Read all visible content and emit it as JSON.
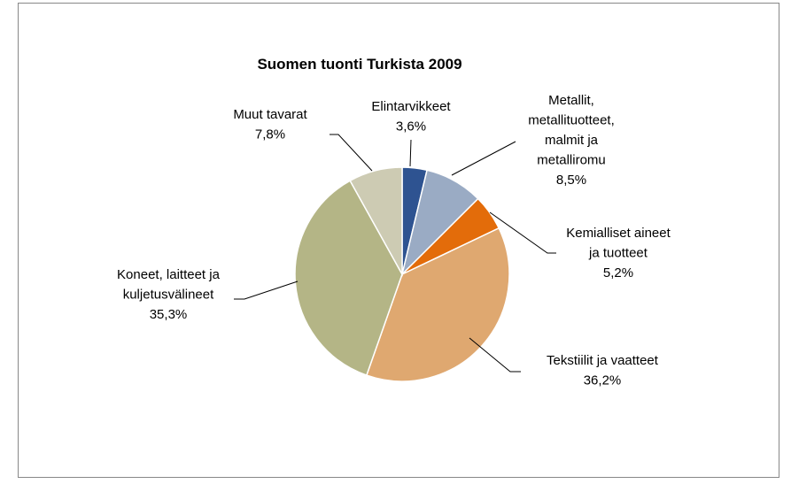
{
  "chart_data": {
    "type": "pie",
    "title": "Suomen tuonti Turkista 2009",
    "categories": [
      "Elintarvikkeet",
      "Metallit,\nmetallituotteet,\nmalmit ja\nmetalliromu",
      "Kemialliset aineet\nja tuotteet",
      "Tekstiilit ja vaatteet",
      "Koneet, laitteet ja\nkuljetusvälineet",
      "Muut tavarat"
    ],
    "values": [
      3.6,
      8.5,
      5.2,
      36.2,
      35.3,
      7.8
    ],
    "value_labels": [
      "3,6%",
      "8,5%",
      "5,2%",
      "36,2%",
      "35,3%",
      "7,8%"
    ],
    "colors": [
      "#2e5391",
      "#9aabc4",
      "#e36c0a",
      "#dfa870",
      "#b4b586",
      "#cdcbb3"
    ]
  }
}
